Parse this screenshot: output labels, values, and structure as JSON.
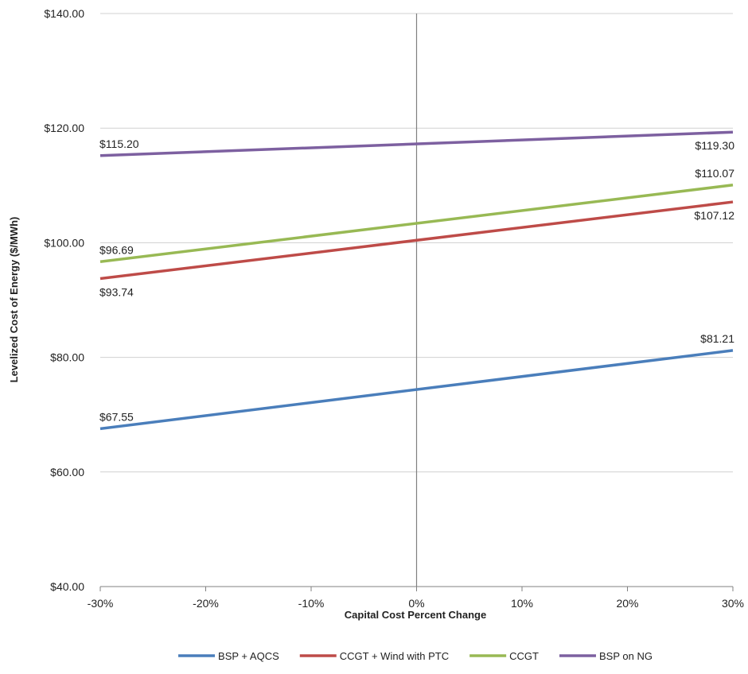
{
  "chart_data": {
    "type": "line",
    "title": "",
    "xlabel": "Capital Cost Percent Change",
    "ylabel": "Levelized Cost of Energy ($/MWh)",
    "x": [
      -30,
      30
    ],
    "x_tick_labels": [
      "-30%",
      "-20%",
      "-10%",
      "0%",
      "10%",
      "20%",
      "30%"
    ],
    "x_tick_values": [
      -30,
      -20,
      -10,
      0,
      10,
      20,
      30
    ],
    "xlim": [
      -30,
      30
    ],
    "ylim": [
      40,
      140
    ],
    "y_tick_values": [
      40,
      60,
      80,
      100,
      120,
      140
    ],
    "y_tick_labels": [
      "$40.00",
      "$60.00",
      "$80.00",
      "$100.00",
      "$120.00",
      "$140.00"
    ],
    "grid": "horizontal",
    "legend_position": "bottom",
    "series": [
      {
        "name": "BSP + AQCS",
        "color": "#4a7ebb",
        "values": [
          67.55,
          81.21
        ],
        "data_labels": [
          "$67.55",
          "$81.21"
        ]
      },
      {
        "name": "CCGT + Wind with PTC",
        "color": "#be4b48",
        "values": [
          93.74,
          107.12
        ],
        "data_labels": [
          "$93.74",
          "$107.12"
        ]
      },
      {
        "name": "CCGT",
        "color": "#98b954",
        "values": [
          96.69,
          110.07
        ],
        "data_labels": [
          "$96.69",
          "$110.07"
        ]
      },
      {
        "name": "BSP on NG",
        "color": "#7d60a0",
        "values": [
          115.2,
          119.3
        ],
        "data_labels": [
          "$115.20",
          "$119.30"
        ]
      }
    ]
  }
}
